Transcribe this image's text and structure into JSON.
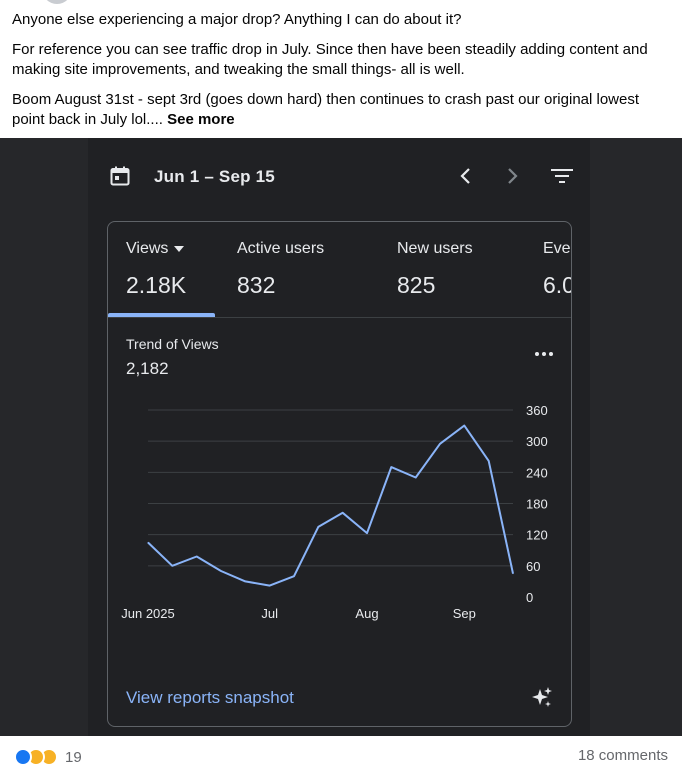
{
  "post": {
    "line1": "Anyone else experiencing a major drop? Anything I can do about it?",
    "line2": "For reference you can see traffic drop in July. Since then have been steadily adding content and making site improvements, and tweaking the small things- all is well.",
    "line3": "Boom August 31st - sept 3rd (goes down hard) then continues to crash past our original lowest point back in July lol....",
    "see_more": "See more"
  },
  "analytics": {
    "date_range": "Jun 1 – Sep 15",
    "metrics": [
      {
        "label": "Views",
        "value": "2.18K"
      },
      {
        "label": "Active users",
        "value": "832"
      },
      {
        "label": "New users",
        "value": "825"
      },
      {
        "label": "Eve",
        "value": "6.0"
      }
    ],
    "trend_title": "Trend of Views",
    "trend_value": "2,182",
    "view_link": "View reports snapshot"
  },
  "chart_data": {
    "type": "line",
    "x": [
      "Jun 1",
      "Jun 8",
      "Jun 15",
      "Jun 22",
      "Jun 29",
      "Jul 6",
      "Jul 13",
      "Jul 20",
      "Jul 27",
      "Aug 3",
      "Aug 10",
      "Aug 17",
      "Aug 24",
      "Aug 31",
      "Sep 7",
      "Sep 14"
    ],
    "values": [
      105,
      60,
      78,
      50,
      30,
      22,
      40,
      135,
      162,
      123,
      250,
      230,
      295,
      330,
      262,
      45
    ],
    "x_tick_labels": [
      "Jun 2025",
      "Jul",
      "Aug",
      "Sep"
    ],
    "y_ticks": [
      0,
      60,
      120,
      180,
      240,
      300,
      360
    ],
    "ylim": [
      0,
      360
    ],
    "grid": true,
    "color": "#8ab4f8"
  },
  "footer": {
    "reaction_count": "19",
    "comments": "18 comments"
  },
  "colors": {
    "accent": "#8ab4f8",
    "background": "#202124",
    "facebook_blue": "#1877f2"
  }
}
